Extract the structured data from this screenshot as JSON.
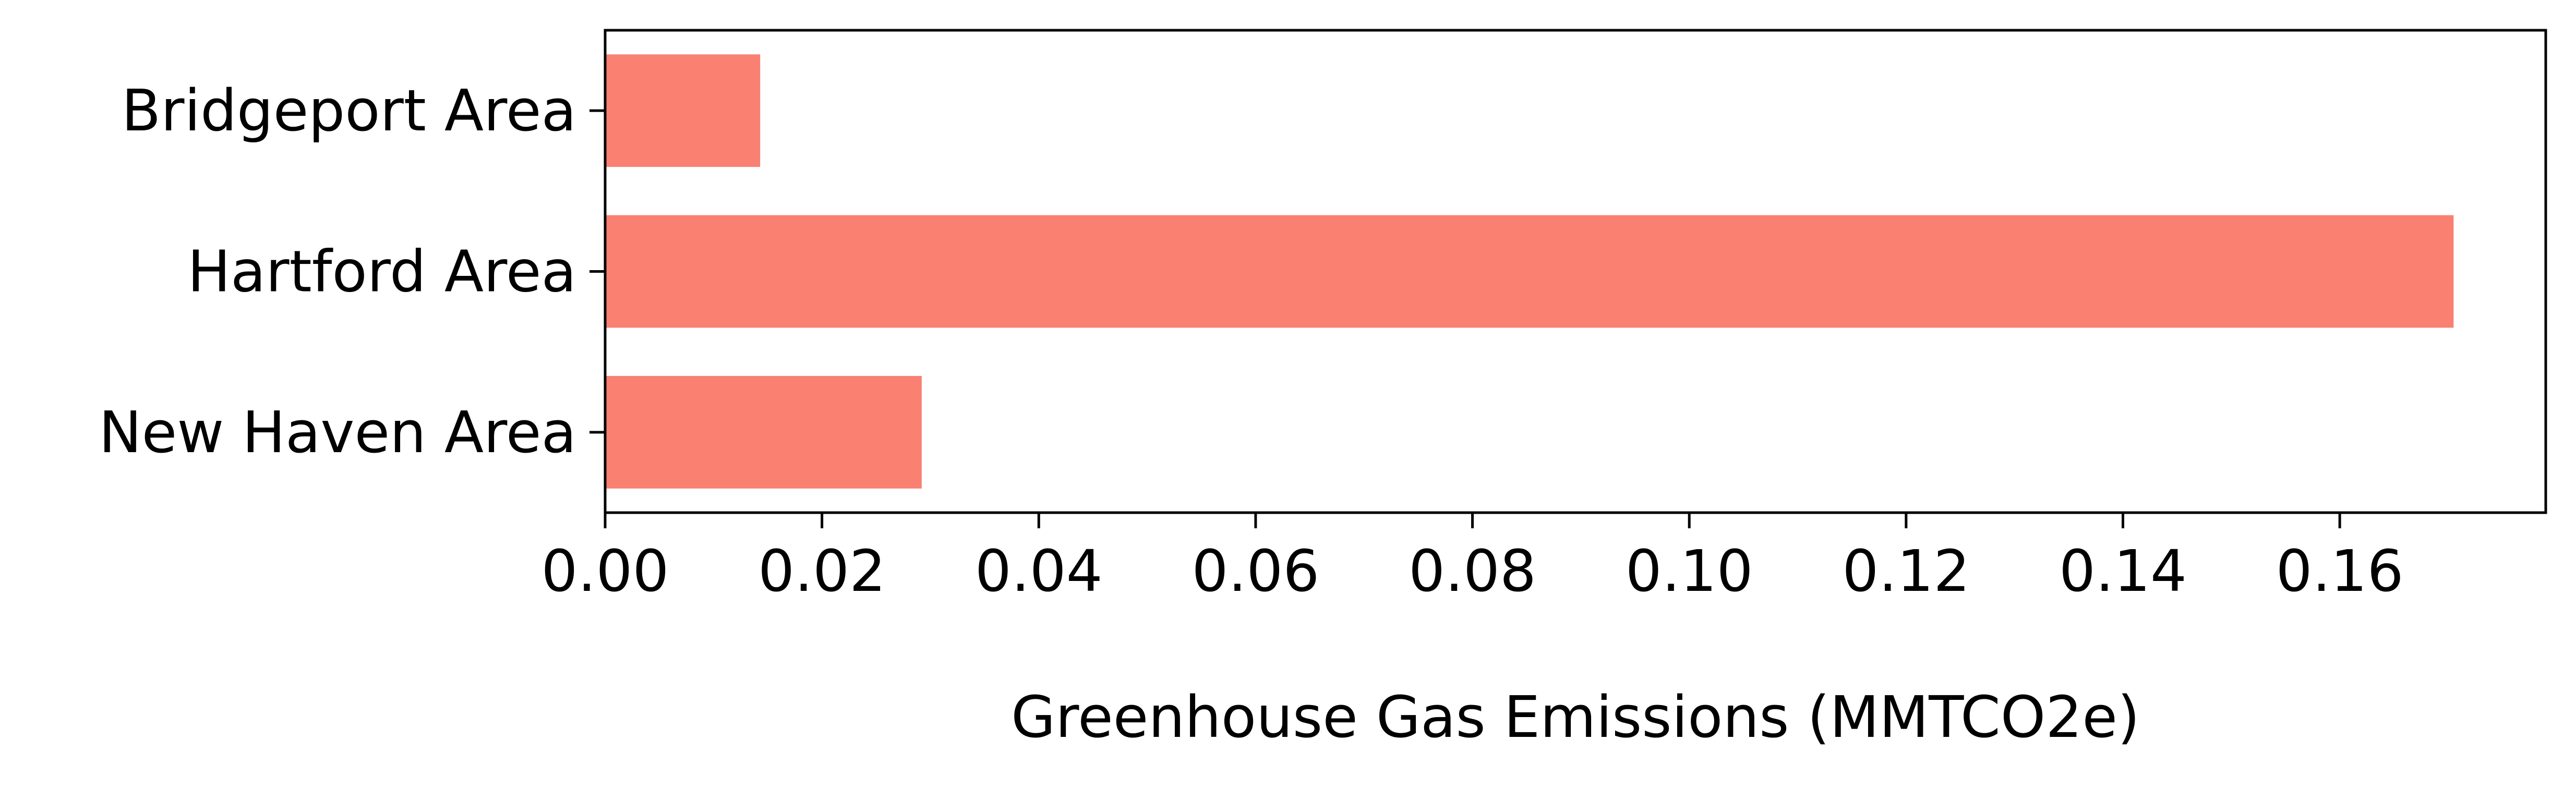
{
  "chart_data": {
    "type": "bar",
    "orientation": "horizontal",
    "title": "",
    "xlabel": "Greenhouse Gas Emissions (MMTCO2e)",
    "ylabel": "",
    "categories": [
      "Bridgeport Area",
      "Hartford Area",
      "New Haven Area"
    ],
    "values": [
      0.0143,
      0.1705,
      0.0292
    ],
    "xlim": [
      0,
      0.179
    ],
    "xticks": [
      0.0,
      0.02,
      0.04,
      0.06,
      0.08,
      0.1,
      0.12,
      0.14,
      0.16
    ],
    "xtick_labels": [
      "0.00",
      "0.02",
      "0.04",
      "0.06",
      "0.08",
      "0.10",
      "0.12",
      "0.14",
      "0.16"
    ],
    "grid": false,
    "legend": "none",
    "bar_color": "#fa8072"
  }
}
